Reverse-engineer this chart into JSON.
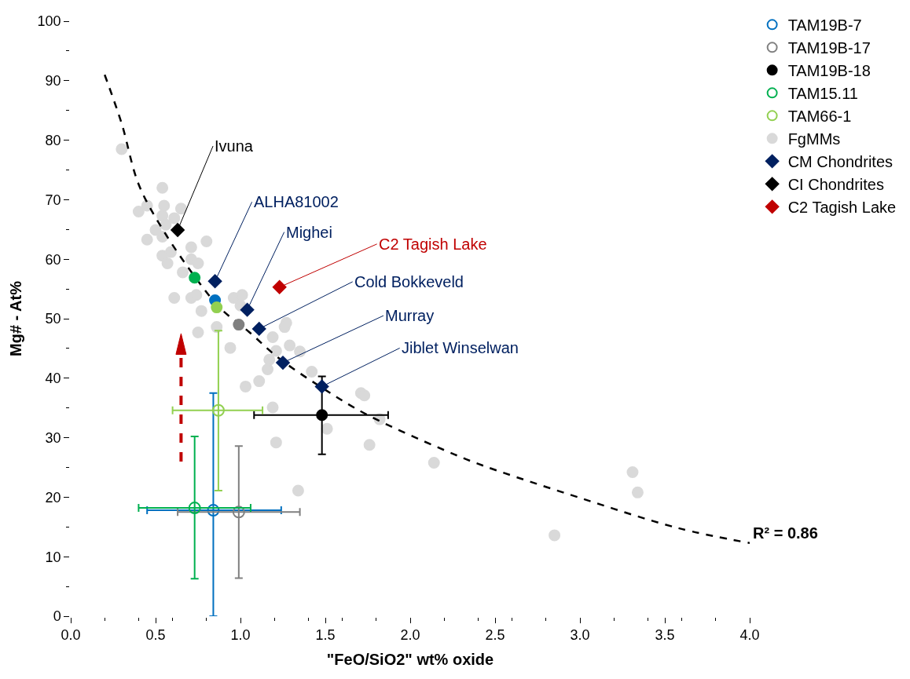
{
  "chart_data": {
    "type": "scatter",
    "xlabel": "\"FeO/SiO2\" wt% oxide",
    "ylabel": "Mg# - At%",
    "xlim": [
      0,
      4
    ],
    "xticks": [
      {
        "value": 0,
        "label": "0.0"
      },
      0.5,
      {
        "value": 1,
        "label": "1.0"
      },
      1.5,
      {
        "value": 2,
        "label": "2.0"
      },
      2.5,
      {
        "value": 3,
        "label": "3.0"
      },
      3.5,
      {
        "value": 4,
        "label": "4.0"
      }
    ],
    "ylim": [
      0,
      100
    ],
    "yticks": [
      0,
      10,
      20,
      30,
      40,
      50,
      60,
      70,
      80,
      90,
      100
    ],
    "legend": "top right",
    "series": [
      {
        "type": "line",
        "color": "#000000",
        "line_style": "dashed",
        "x": [
          0.2,
          0.3,
          0.4,
          0.54,
          0.73,
          0.88,
          1.05,
          1.22,
          1.48,
          1.75,
          2.26,
          2.44,
          3.01,
          3.58,
          4.0
        ],
        "values": [
          91,
          82.8,
          72.6,
          65.1,
          57.1,
          51.8,
          47.8,
          43.5,
          38.4,
          33.8,
          27.2,
          25.2,
          19.8,
          14.8,
          12.3
        ]
      },
      {
        "color": "#0070c0",
        "marker": "circle",
        "x": [
          0.85
        ],
        "values": [
          53.1
        ]
      },
      {
        "color": "#00b050",
        "marker": "circle",
        "x": [
          0.73
        ],
        "values": [
          56.9
        ]
      },
      {
        "color": "#92d050",
        "marker": "circle",
        "x": [
          0.86
        ],
        "values": [
          51.9
        ]
      },
      {
        "color": "#808080",
        "marker": "circle",
        "x": [
          0.99
        ],
        "values": [
          49.0
        ]
      },
      {
        "name": "TAM19B-7",
        "color": "#0070c0",
        "marker": "circle-open",
        "x": [
          0.84
        ],
        "values": [
          17.8
        ],
        "errors": [
          [
            0,
            37.5
          ]
        ],
        "xerrors": [
          [
            0.45,
            1.24
          ]
        ]
      },
      {
        "name": "TAM19B-17",
        "color": "#808080",
        "marker": "circle-open",
        "x": [
          0.99
        ],
        "values": [
          17.5
        ],
        "errors": [
          [
            6.4,
            28.6
          ]
        ],
        "xerrors": [
          [
            0.63,
            1.35
          ]
        ]
      },
      {
        "name": "TAM19B-18",
        "color": "#000000",
        "marker": "circle",
        "x": [
          1.48
        ],
        "values": [
          33.8
        ],
        "errors": [
          [
            27.2,
            40.3
          ]
        ],
        "xerrors": [
          [
            1.08,
            1.87
          ]
        ]
      },
      {
        "name": "TAM15.11",
        "color": "#00b050",
        "marker": "circle-open",
        "x": [
          0.73
        ],
        "values": [
          18.2
        ],
        "errors": [
          [
            6.3,
            30.2
          ]
        ],
        "xerrors": [
          [
            0.4,
            1.06
          ]
        ]
      },
      {
        "name": "TAM66-1",
        "color": "#92d050",
        "marker": "circle-open",
        "x": [
          0.87
        ],
        "values": [
          34.6
        ],
        "errors": [
          [
            21.1,
            48
          ]
        ],
        "xerrors": [
          [
            0.6,
            1.13
          ]
        ]
      },
      {
        "name": "FgMMs",
        "color": "#d9d9d9",
        "marker": "circle",
        "x": [
          0.3,
          0.54,
          0.4,
          0.45,
          0.55,
          0.65,
          0.54,
          0.61,
          0.5,
          0.56,
          0.45,
          0.54,
          0.8,
          0.71,
          0.59,
          0.54,
          0.71,
          0.75,
          0.57,
          0.66,
          0.61,
          0.71,
          0.74,
          0.77,
          0.96,
          1.01,
          1.0,
          0.86,
          0.75,
          1.27,
          1.26,
          1.19,
          0.94,
          1.29,
          1.35,
          1.17,
          1.16,
          1.21,
          1.42,
          1.11,
          1.03,
          1.19,
          1.71,
          1.73,
          1.51,
          1.21,
          1.76,
          2.14,
          1.82,
          1.34,
          3.31,
          3.34,
          2.85
        ],
        "values": [
          78.5,
          72.0,
          68.0,
          69.0,
          69.0,
          68.5,
          67.3,
          66.9,
          64.9,
          65.8,
          63.3,
          63.8,
          63.0,
          62.0,
          61.2,
          60.6,
          60.0,
          59.3,
          59.3,
          57.8,
          53.5,
          53.5,
          54.0,
          51.3,
          53.5,
          54.0,
          52.2,
          48.6,
          47.7,
          49.3,
          48.6,
          46.9,
          45.1,
          45.5,
          44.5,
          43.1,
          41.5,
          44.6,
          41.1,
          39.5,
          38.6,
          35.1,
          37.5,
          37.1,
          31.5,
          29.2,
          28.8,
          25.8,
          33.1,
          21.1,
          24.2,
          20.8,
          13.6
        ]
      },
      {
        "name": "CM Chondrites",
        "color": "#002060",
        "marker": "diamond",
        "x": [
          0.85,
          1.04,
          1.11,
          1.25,
          1.48
        ],
        "values": [
          56.3,
          51.5,
          48.3,
          42.6,
          38.6
        ]
      },
      {
        "name": "CI Chondrites",
        "color": "#000000",
        "marker": "diamond",
        "x": [
          0.63
        ],
        "values": [
          64.9
        ]
      },
      {
        "name": "C2 Tagish Lake",
        "color": "#c00000",
        "marker": "diamond",
        "x": [
          1.23
        ],
        "values": [
          55.3
        ]
      }
    ],
    "annotations": [
      {
        "text": "Ivuna",
        "x": 0.63,
        "y": 64.9
      },
      {
        "text": "ALHA81002",
        "x": 0.85,
        "y": 56.3
      },
      {
        "text": "Mighei",
        "x": 1.04,
        "y": 51.5
      },
      {
        "text": "C2 Tagish Lake",
        "x": 1.23,
        "y": 55.3
      },
      {
        "text": "Cold Bokkeveld",
        "x": 1.11,
        "y": 48.3
      },
      {
        "text": "Murray",
        "x": 1.25,
        "y": 42.6
      },
      {
        "text": "Jiblet Winselwan",
        "x": 1.48,
        "y": 38.6
      },
      {
        "text": "R² = 0.86",
        "x": 4.0,
        "y": 12.3
      }
    ]
  }
}
